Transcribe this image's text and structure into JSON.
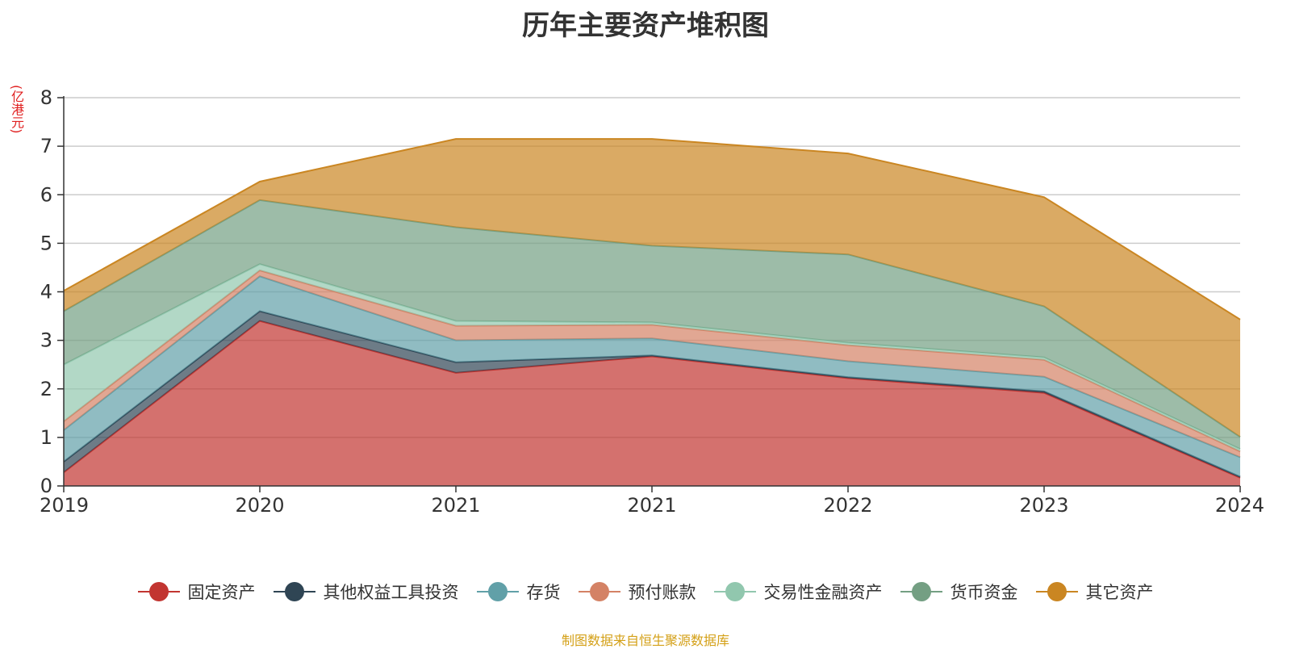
{
  "chart_data": {
    "type": "area",
    "title": "历年主要资产堆积图",
    "unit_label": "(亿港元)",
    "source": "制图数据来自恒生聚源数据库",
    "stacked": true,
    "x": [
      "2019",
      "2020",
      "2021",
      "2021",
      "2022",
      "2023",
      "2024"
    ],
    "ylim": [
      0,
      8
    ],
    "yticks": [
      0,
      1,
      2,
      3,
      4,
      5,
      6,
      7,
      8
    ],
    "grid": true,
    "legend_position": "bottom",
    "series": [
      {
        "name": "固定资产",
        "color": "#c23531",
        "values": [
          0.28,
          3.4,
          2.33,
          2.67,
          2.22,
          1.92,
          0.17
        ]
      },
      {
        "name": "其他权益工具投资",
        "color": "#2f4554",
        "values": [
          0.22,
          0.2,
          0.22,
          0.02,
          0.02,
          0.03,
          0.02
        ]
      },
      {
        "name": "存货",
        "color": "#61a0a8",
        "values": [
          0.65,
          0.72,
          0.45,
          0.35,
          0.33,
          0.3,
          0.4
        ]
      },
      {
        "name": "预付账款",
        "color": "#d48265",
        "values": [
          0.18,
          0.12,
          0.3,
          0.28,
          0.33,
          0.35,
          0.12
        ]
      },
      {
        "name": "交易性金融资产",
        "color": "#91c7ae",
        "values": [
          1.17,
          0.13,
          0.1,
          0.05,
          0.05,
          0.05,
          0.05
        ]
      },
      {
        "name": "货币资金",
        "color": "#749f83",
        "values": [
          1.1,
          1.32,
          1.93,
          1.58,
          1.82,
          1.05,
          0.25
        ]
      },
      {
        "name": "其它资产",
        "color": "#ca8622",
        "values": [
          0.42,
          0.38,
          1.82,
          2.2,
          2.08,
          2.25,
          2.42
        ]
      }
    ]
  }
}
